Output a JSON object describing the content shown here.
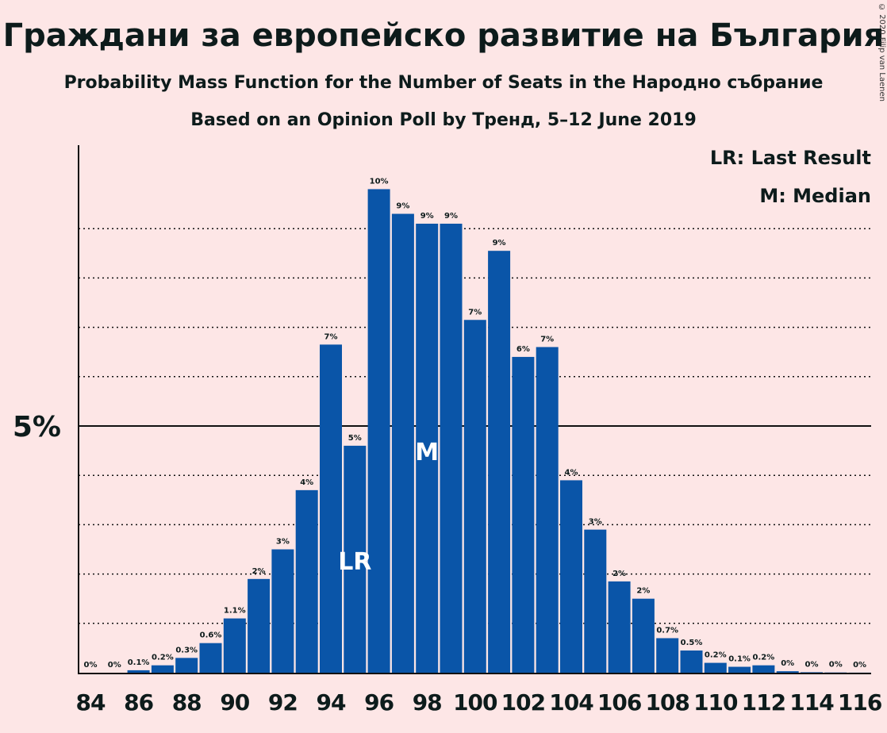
{
  "title": "Граждани за европейско развитие на България",
  "subtitle": "Probability Mass Function for the Number of Seats in the Народно събрание",
  "subtitle2": "Based on an Opinion Poll by Тренд, 5–12 June 2019",
  "copyright": "© 2020 Filip van Laenen",
  "legend": {
    "lr": "LR: Last Result",
    "m": "M: Median"
  },
  "colors": {
    "bar": "#0a55a8",
    "background": "#fde6e6",
    "text": "#0d1b1b"
  },
  "chart_data": {
    "type": "bar",
    "categories": [
      84,
      85,
      86,
      87,
      88,
      89,
      90,
      91,
      92,
      93,
      94,
      95,
      96,
      97,
      98,
      99,
      100,
      101,
      102,
      103,
      104,
      105,
      106,
      107,
      108,
      109,
      110,
      111,
      112,
      113,
      114,
      115,
      116
    ],
    "values": [
      0,
      0,
      0.05,
      0.15,
      0.3,
      0.6,
      1.1,
      1.9,
      2.5,
      3.7,
      6.65,
      4.6,
      9.8,
      9.3,
      9.1,
      9.1,
      7.15,
      8.55,
      6.4,
      6.6,
      3.9,
      2.9,
      1.85,
      1.5,
      0.7,
      0.45,
      0.2,
      0.12,
      0.15,
      0.03,
      0.01,
      0.005,
      0.002
    ],
    "labels": [
      "0%",
      "0%",
      "0.1%",
      "0.2%",
      "0.3%",
      "0.6%",
      "1.1%",
      "2%",
      "3%",
      "4%",
      "7%",
      "5%",
      "10%",
      "9%",
      "9%",
      "9%",
      "7%",
      "9%",
      "6%",
      "7%",
      "4%",
      "3%",
      "2%",
      "2%",
      "0.7%",
      "0.5%",
      "0.2%",
      "0.1%",
      "0.2%",
      "0%",
      "0%",
      "0%",
      "0%"
    ],
    "x_tick_labels": [
      "84",
      "86",
      "88",
      "90",
      "92",
      "94",
      "96",
      "98",
      "100",
      "102",
      "104",
      "106",
      "108",
      "110",
      "112",
      "114",
      "116"
    ],
    "y_tick_labels": [
      "5%"
    ],
    "ylim": [
      0,
      10.5
    ],
    "gridlines": [
      1,
      2,
      3,
      4,
      6,
      7,
      8,
      9
    ],
    "reference_line": 5,
    "last_result": 95,
    "median": 98,
    "markers": {
      "last_result": "LR",
      "median": "M"
    }
  }
}
